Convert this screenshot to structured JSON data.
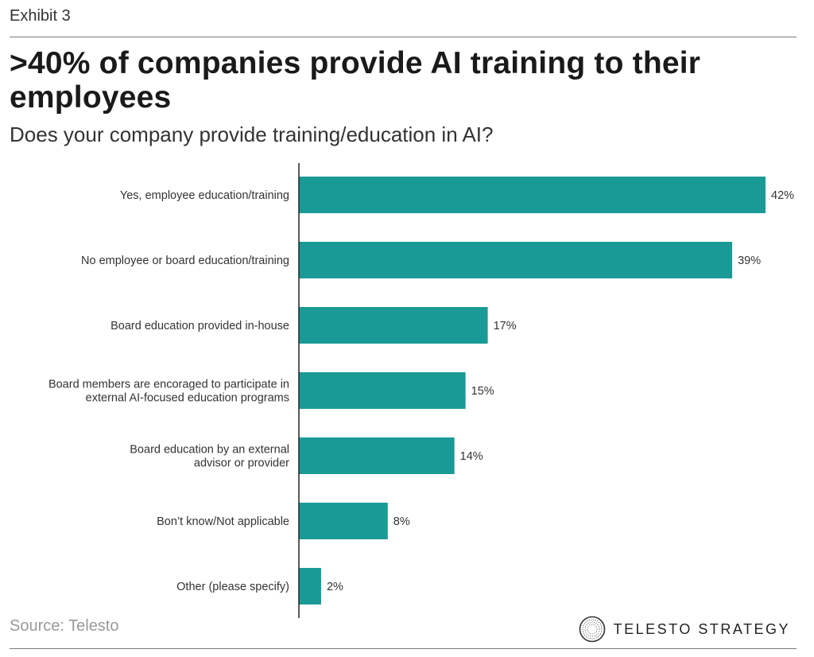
{
  "exhibit_label": "Exhibit 3",
  "title": ">40% of companies provide AI training to their employees",
  "subtitle": "Does your company provide training/education in AI?",
  "source": "Source: Telesto",
  "brand": {
    "name": "TELESTO STRATEGY",
    "logo_icon": "concentric-circle-logo-icon"
  },
  "colors": {
    "bar": "#1a9a96",
    "axis": "#222222",
    "rule": "#7a7a7a",
    "source_text": "#9a9a9a"
  },
  "chart_data": {
    "type": "bar",
    "orientation": "horizontal",
    "categories": [
      "Yes, employee education/training",
      "No employee or board education/training",
      "Board education provided in-house",
      "Board members are encoraged to participate in external AI-focused education programs",
      "Board education by an external advisor or provider",
      "Bon’t know/Not applicable",
      "Other (please specify)"
    ],
    "category_lines": [
      [
        "Yes, employee education/training"
      ],
      [
        "No employee or board education/training"
      ],
      [
        "Board education provided in-house"
      ],
      [
        "Board members are encoraged to participate in",
        "external AI-focused education programs"
      ],
      [
        "Board education by an external",
        "advisor or provider"
      ],
      [
        "Bon’t know/Not applicable"
      ],
      [
        "Other (please specify)"
      ]
    ],
    "values": [
      42,
      39,
      17,
      15,
      14,
      8,
      2
    ],
    "data_labels": [
      "42%",
      "39%",
      "17%",
      "15%",
      "14%",
      "8%",
      "2%"
    ],
    "unit": "%",
    "xlim": [
      0,
      42
    ],
    "grid": false,
    "legend": "none"
  }
}
